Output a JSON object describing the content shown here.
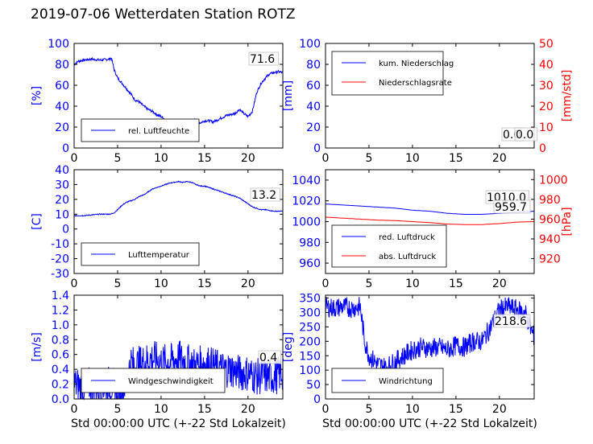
{
  "figure": {
    "title": "2019-07-06 Wetterdaten Station ROTZ",
    "xlabel": "Std 00:00:00 UTC (+-22 Std Lokalzeit)"
  },
  "colors": {
    "left_axis": "#0000ff",
    "right_axis": "#ff0000",
    "line1": "#0000ff",
    "line2": "#ff0000",
    "annot_bg": "#ffffff"
  },
  "chart_data": [
    {
      "type": "line",
      "ylabel": "[%]",
      "xlim": [
        0,
        24
      ],
      "ylim": [
        0,
        100
      ],
      "xticks": [
        0,
        5,
        10,
        15,
        20
      ],
      "yticks": [
        0,
        20,
        40,
        60,
        80,
        100
      ],
      "legend": "bottom-left",
      "annotation": "71.6",
      "series": [
        {
          "name": "rel. Luftfeuchte",
          "axis": "left",
          "x": [
            0,
            0.5,
            1,
            2,
            3,
            4,
            4.3,
            4.6,
            5,
            5.5,
            6,
            6.5,
            7,
            7.5,
            8,
            8.5,
            9,
            9.5,
            10,
            10.5,
            11,
            11.5,
            12,
            12.5,
            13,
            13.5,
            14,
            14.5,
            15,
            15.5,
            16,
            16.5,
            17,
            17.5,
            18,
            18.5,
            19,
            19.5,
            20,
            20.5,
            21,
            21.5,
            22,
            22.5,
            23,
            23.5,
            24
          ],
          "y": [
            80,
            83,
            84,
            85,
            84,
            85,
            86,
            75,
            67,
            62,
            57,
            52,
            46,
            44,
            40,
            37,
            35,
            32,
            30,
            27,
            25,
            24,
            24,
            25,
            24,
            25,
            27,
            24,
            26,
            26,
            25,
            27,
            29,
            31,
            32,
            33,
            37,
            33,
            30,
            35,
            53,
            62,
            67,
            71,
            72,
            73,
            72
          ],
          "noise": 1.2
        }
      ]
    },
    {
      "type": "line",
      "ylabel": "[mm]",
      "ylabel_right": "[mm/std]",
      "xlim": [
        0,
        24
      ],
      "ylim": [
        0,
        100
      ],
      "ylim_right": [
        0,
        50
      ],
      "xticks": [
        0,
        5,
        10,
        15,
        20
      ],
      "yticks": [
        0,
        20,
        40,
        60,
        80,
        100
      ],
      "yticks_right": [
        0,
        10,
        20,
        30,
        40,
        50
      ],
      "legend": "top-left",
      "annotation": "0.0",
      "annotation2": "0.0",
      "series": [
        {
          "name": "kum. Niederschlag",
          "axis": "left",
          "x": [
            0,
            24
          ],
          "y": [
            0,
            0
          ]
        },
        {
          "name": "Niederschlagsrate",
          "axis": "right",
          "x": [
            0,
            24
          ],
          "y": [
            0,
            0
          ]
        }
      ]
    },
    {
      "type": "line",
      "ylabel": "[C]",
      "xlim": [
        0,
        24
      ],
      "ylim": [
        -30,
        40
      ],
      "xticks": [
        0,
        5,
        10,
        15,
        20
      ],
      "yticks": [
        -30,
        -20,
        -10,
        0,
        10,
        20,
        30,
        40
      ],
      "legend": "bottom-left",
      "annotation": "13.2",
      "series": [
        {
          "name": "Lufttemperatur",
          "axis": "left",
          "x": [
            0,
            1,
            2,
            3,
            4,
            4.5,
            5,
            5.5,
            6,
            6.5,
            7,
            7.5,
            8,
            8.5,
            9,
            9.5,
            10,
            10.5,
            11,
            11.5,
            12,
            12.5,
            13,
            13.5,
            14,
            14.5,
            15,
            15.5,
            16,
            16.5,
            17,
            17.5,
            18,
            18.5,
            19,
            19.5,
            20,
            20.5,
            21,
            21.5,
            22,
            23,
            24
          ],
          "y": [
            9,
            9,
            9.5,
            10,
            10,
            10.5,
            13,
            16,
            18,
            19,
            20,
            22,
            23,
            25,
            27,
            28,
            29,
            30,
            31,
            31.5,
            32,
            31.5,
            32,
            31.5,
            30,
            29,
            29,
            28,
            27,
            26,
            25,
            24,
            23,
            22,
            21,
            19,
            17,
            15,
            14,
            13,
            13,
            12,
            12
          ],
          "noise": 0.3
        }
      ]
    },
    {
      "type": "line",
      "ylabel_right": "[hPa]",
      "xlim": [
        0,
        24
      ],
      "ylim": [
        950,
        1050
      ],
      "ylim_right": [
        905,
        1010
      ],
      "xticks": [
        0,
        5,
        10,
        15,
        20
      ],
      "yticks": [
        960,
        980,
        1000,
        1020,
        1040
      ],
      "yticks_right": [
        920,
        940,
        960,
        980,
        1000
      ],
      "legend": "bottom-left",
      "annotation": "1010.0",
      "annotation2": "959.7",
      "series": [
        {
          "name": "red. Luftdruck",
          "axis": "left",
          "x": [
            0,
            2,
            4,
            6,
            8,
            10,
            12,
            14,
            16,
            18,
            20,
            22,
            24
          ],
          "y": [
            1017,
            1016,
            1015,
            1014,
            1013,
            1011,
            1010,
            1008,
            1007,
            1007,
            1008,
            1009,
            1010
          ]
        },
        {
          "name": "abs. Luftdruck",
          "axis": "right",
          "x": [
            0,
            2,
            4,
            6,
            8,
            10,
            12,
            14,
            16,
            18,
            20,
            22,
            24
          ],
          "y": [
            962,
            961,
            960,
            959,
            958.5,
            957.5,
            956.5,
            955,
            954.5,
            954.5,
            955.5,
            957,
            957.5
          ]
        }
      ]
    },
    {
      "type": "line",
      "ylabel": "[m/s]",
      "xlim": [
        0,
        24
      ],
      "ylim": [
        0,
        1.4
      ],
      "xticks": [
        0,
        5,
        10,
        15,
        20
      ],
      "yticks": [
        0.0,
        0.2,
        0.4,
        0.6,
        0.8,
        1.0,
        1.2,
        1.4
      ],
      "legend": "bottom-center",
      "annotation": "0.4",
      "series": [
        {
          "name": "Windgeschwindigkeit",
          "axis": "left",
          "x": [
            0,
            1,
            2,
            3,
            4,
            5,
            6,
            6.5,
            7,
            8,
            9,
            10,
            11,
            12,
            13,
            14,
            15,
            16,
            17,
            18,
            19,
            20,
            21,
            22,
            23,
            24
          ],
          "y": [
            0.2,
            0.15,
            0.2,
            0.15,
            0.2,
            0.15,
            0.2,
            0.5,
            0.45,
            0.5,
            0.55,
            0.5,
            0.5,
            0.55,
            0.5,
            0.45,
            0.5,
            0.45,
            0.4,
            0.4,
            0.35,
            0.35,
            0.3,
            0.3,
            0.3,
            0.35
          ],
          "noise": 0.25
        }
      ]
    },
    {
      "type": "line",
      "ylabel": "[deg]",
      "xlim": [
        0,
        24
      ],
      "ylim": [
        0,
        360
      ],
      "xticks": [
        0,
        5,
        10,
        15,
        20
      ],
      "yticks": [
        0,
        50,
        100,
        150,
        200,
        250,
        300,
        350
      ],
      "legend": "bottom-left",
      "annotation": "218.6",
      "series": [
        {
          "name": "Windrichtung",
          "axis": "left",
          "x": [
            0,
            1,
            2,
            3,
            4,
            4.5,
            5,
            6,
            7,
            8,
            9,
            10,
            11,
            12,
            13,
            14,
            15,
            16,
            17,
            18,
            19,
            20,
            21,
            22,
            23,
            23.5,
            24
          ],
          "y": [
            320,
            315,
            320,
            315,
            320,
            200,
            150,
            120,
            110,
            130,
            150,
            170,
            180,
            175,
            180,
            170,
            185,
            180,
            200,
            200,
            250,
            310,
            320,
            310,
            300,
            250,
            215
          ],
          "noise": 35
        }
      ]
    }
  ]
}
